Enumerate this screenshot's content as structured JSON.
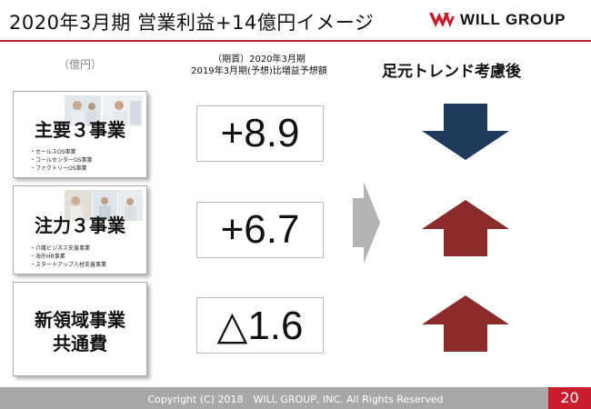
{
  "header": {
    "title": "2020年3月期 営業利益+14億円イメージ",
    "logo_text": "WILL GROUP",
    "brand_color": "#c81e2d"
  },
  "labels": {
    "unit": "（億円）",
    "column_head_line1": "（期首）2020年3月期",
    "column_head_line2": "2019年3月期(予想)比増益予想額",
    "trend_head": "足元トレンド考慮後"
  },
  "segments": [
    {
      "title": "主要３事業",
      "items": [
        "セールスOS事業",
        "コールセンターOS事業",
        "ファクトリーOS事業"
      ],
      "value": "+8.9",
      "trend": "down",
      "trend_color": "#1f3a5c"
    },
    {
      "title": "注力３事業",
      "items": [
        "介護ビジネス支援事業",
        "海外HR事業",
        "スタートアップ人材支援事業"
      ],
      "value": "+6.7",
      "trend": "up",
      "trend_color": "#8b2b2b"
    },
    {
      "title_line1": "新領域事業",
      "title_line2": "共通費",
      "value": "△1.6",
      "trend": "up",
      "trend_color": "#8b2b2b"
    }
  ],
  "footer": {
    "copyright": "Copyright (C) 2018　WILL GROUP, INC.  All Rights Reserved",
    "page_number": "20"
  }
}
